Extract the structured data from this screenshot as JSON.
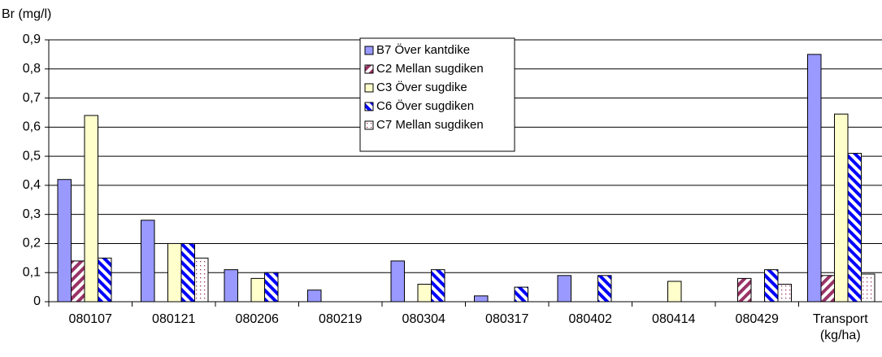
{
  "chart_data": {
    "type": "bar",
    "y_label": "Br (mg/l)",
    "categories": [
      "080107",
      "080121",
      "080206",
      "080219",
      "080304",
      "080317",
      "080402",
      "080414",
      "080429",
      "Transport (kg/ha)"
    ],
    "series": [
      {
        "name": "B7 Över kantdike",
        "color": "#9999ff",
        "pattern": "solid",
        "values": [
          0.42,
          0.28,
          0.11,
          0.04,
          0.14,
          0.02,
          0.09,
          null,
          null,
          0.85
        ]
      },
      {
        "name": "C2 Mellan sugdiken",
        "color": "#993366",
        "pattern": "diagonal",
        "values": [
          0.14,
          null,
          null,
          null,
          null,
          null,
          null,
          null,
          0.08,
          0.09
        ]
      },
      {
        "name": "C3 Över sugdike",
        "color": "#ffffcc",
        "pattern": "solid",
        "values": [
          0.64,
          0.2,
          0.08,
          null,
          0.06,
          null,
          null,
          0.07,
          null,
          0.645
        ]
      },
      {
        "name": "C6 Över sugdiken",
        "color": "#0000ff",
        "pattern": "diagonal",
        "values": [
          0.15,
          0.2,
          0.1,
          null,
          0.11,
          0.05,
          0.09,
          null,
          0.11,
          0.51
        ]
      },
      {
        "name": "C7 Mellan sugdiken",
        "color": "#993366",
        "pattern": "dots",
        "values": [
          null,
          0.15,
          null,
          null,
          null,
          null,
          null,
          null,
          0.06,
          0.095
        ]
      }
    ],
    "ylim": [
      0,
      0.9
    ],
    "yticks": [
      0,
      {
        "value": 0.1,
        "label": "0,1"
      },
      {
        "value": 0.2,
        "label": "0,2"
      },
      {
        "value": 0.3,
        "label": "0,3"
      },
      {
        "value": 0.4,
        "label": "0,4"
      },
      {
        "value": 0.5,
        "label": "0,5"
      },
      {
        "value": 0.6,
        "label": "0,6"
      },
      {
        "value": 0.7,
        "label": "0,7"
      },
      {
        "value": 0.8,
        "label": "0,8"
      },
      {
        "value": 0.9,
        "label": "0,9"
      }
    ],
    "grid": true,
    "legend": "top-center"
  }
}
